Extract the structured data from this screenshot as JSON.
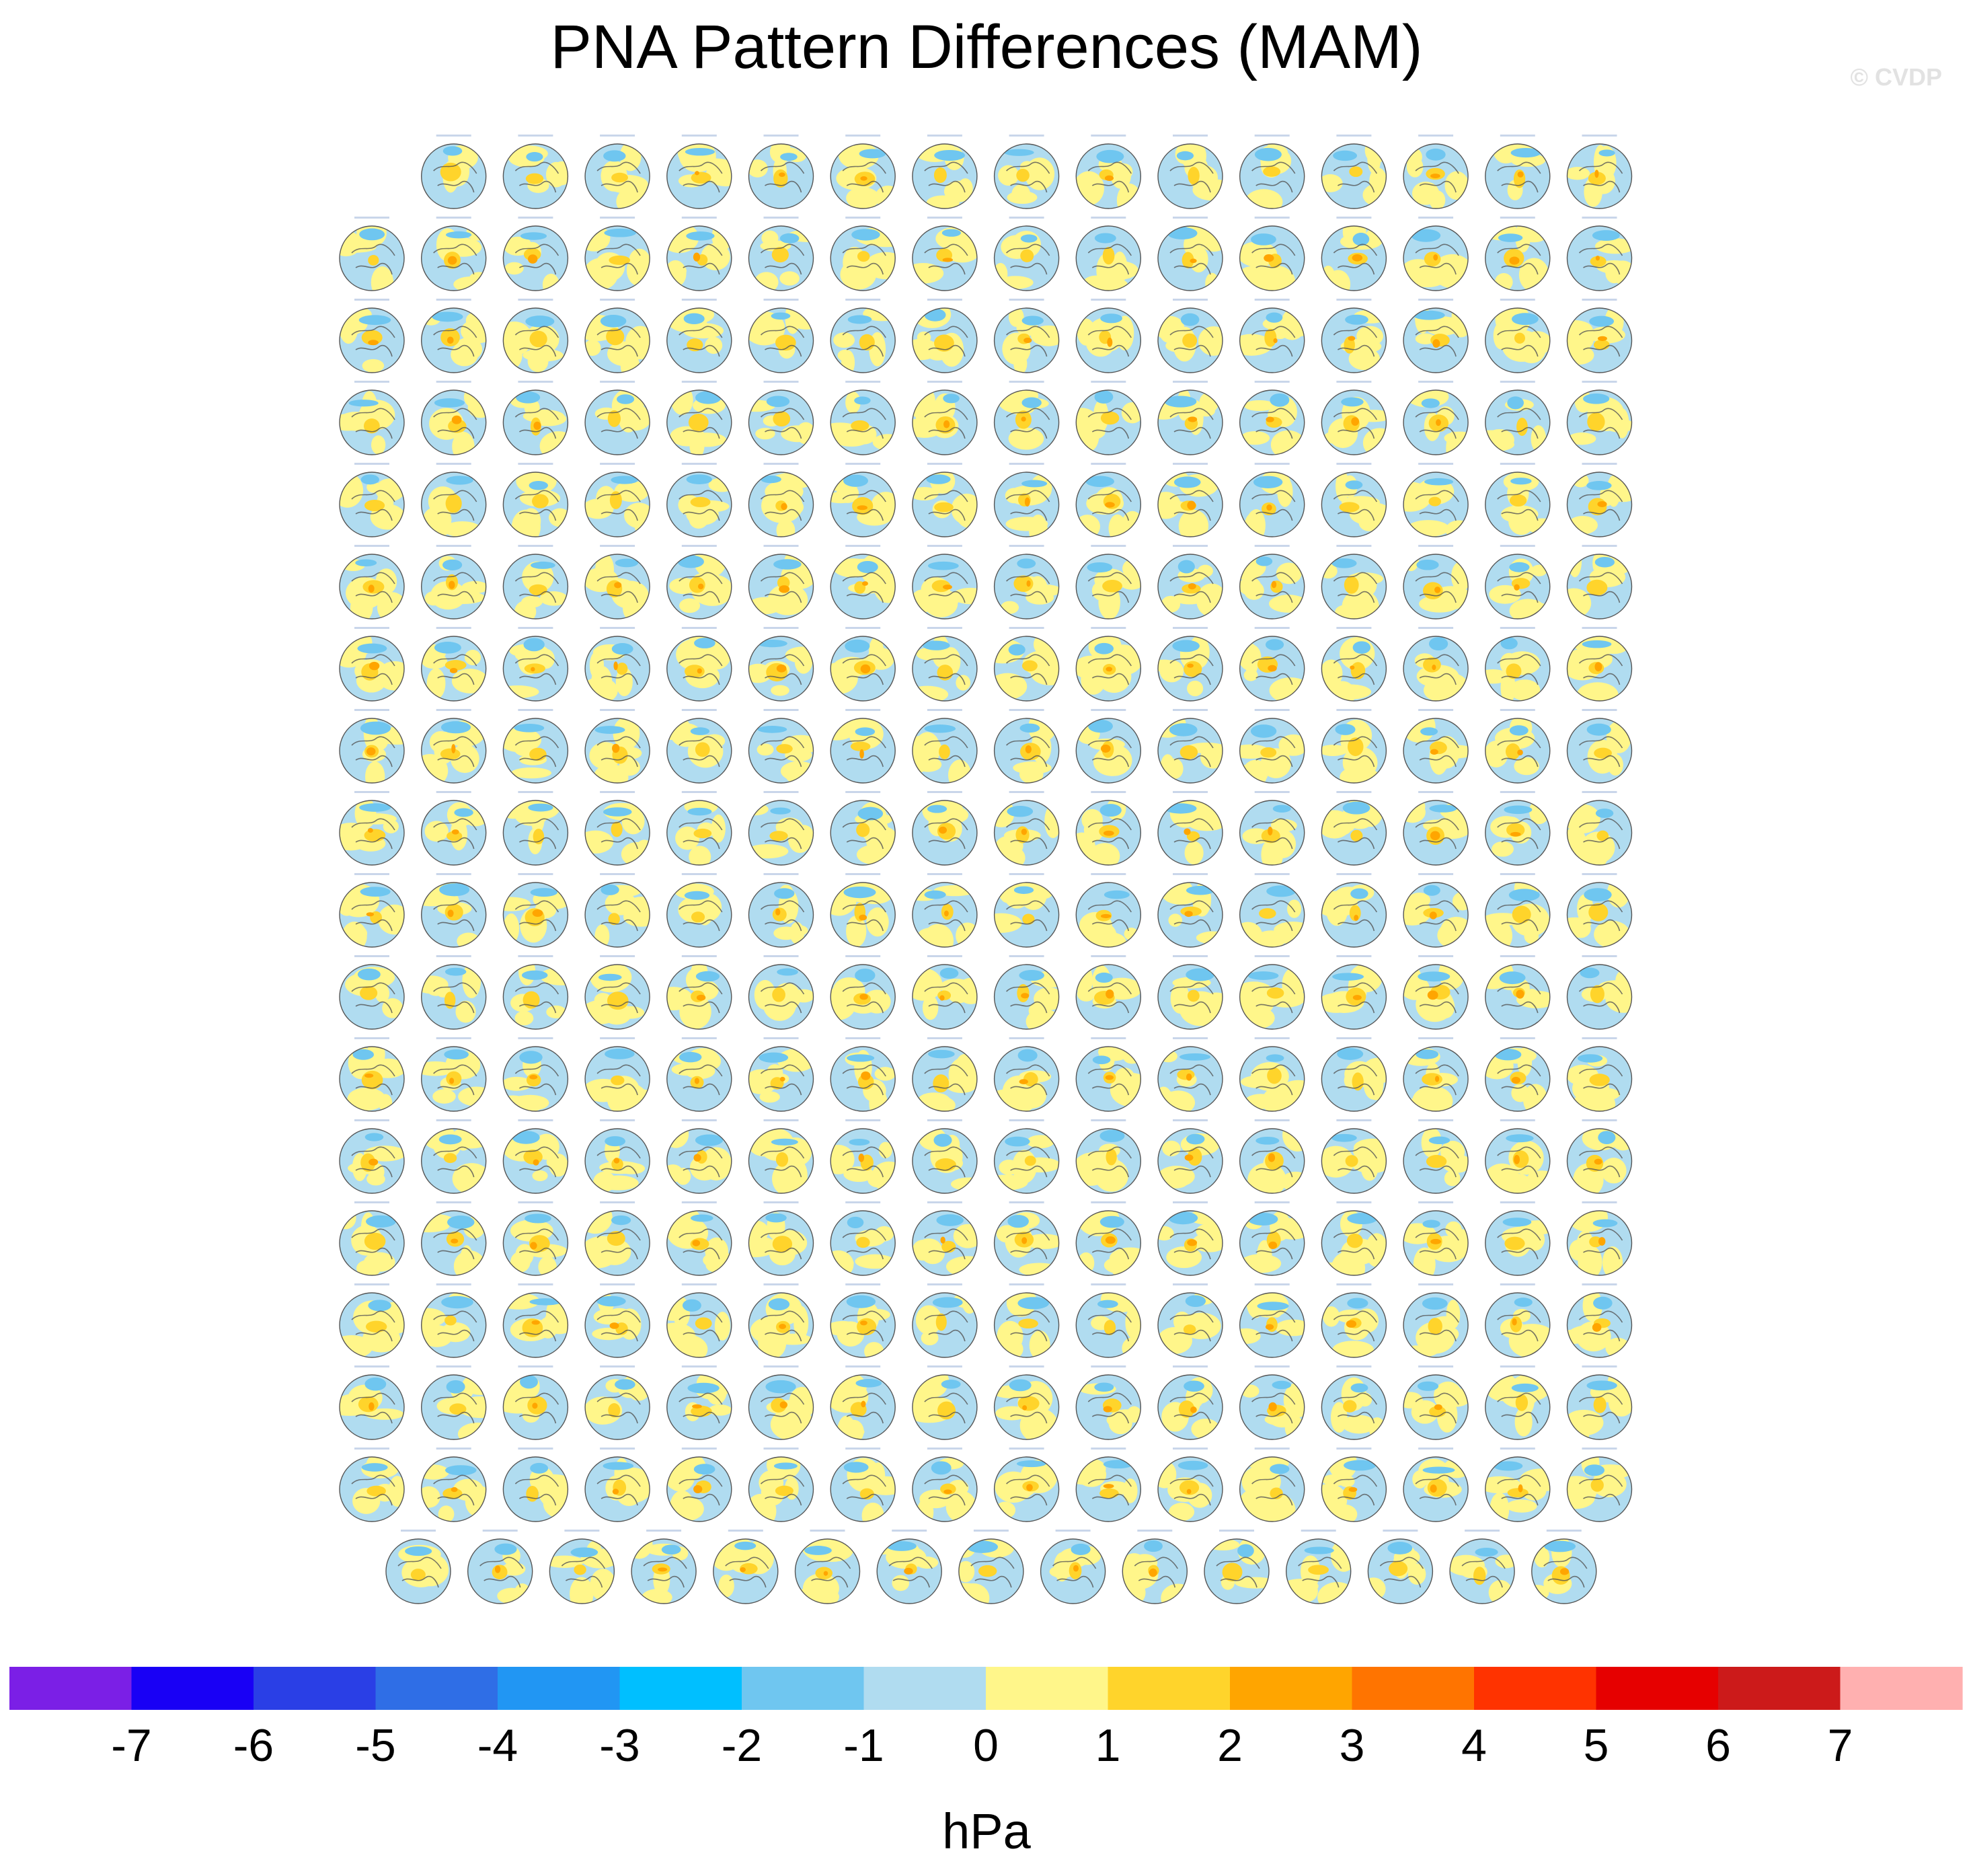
{
  "title": "PNA Pattern Differences (MAM)",
  "watermark": "© CVDP",
  "units": "hPa",
  "chart_data": {
    "type": "heatmap",
    "title": "PNA Pattern Differences (MAM)",
    "projection": "north polar stereographic maps, small multiples",
    "panel_layout": {
      "rows": 18,
      "panels_per_row": [
        15,
        16,
        16,
        16,
        16,
        16,
        16,
        16,
        16,
        16,
        16,
        16,
        16,
        16,
        16,
        16,
        16,
        15
      ]
    },
    "colorbar": {
      "label": "hPa",
      "levels": [
        -7,
        -6,
        -5,
        -4,
        -3,
        -2,
        -1,
        0,
        1,
        2,
        3,
        4,
        5,
        6,
        7
      ],
      "colors": [
        "#7b1fe6",
        "#1900f5",
        "#2a3fe6",
        "#2f6ee6",
        "#2196f3",
        "#00bfff",
        "#6fc6f0",
        "#b0dcf0",
        "#fff68a",
        "#ffd42b",
        "#ffa500",
        "#ff7400",
        "#ff3300",
        "#e60000",
        "#cc1a1a",
        "#ffb0b0"
      ]
    }
  }
}
